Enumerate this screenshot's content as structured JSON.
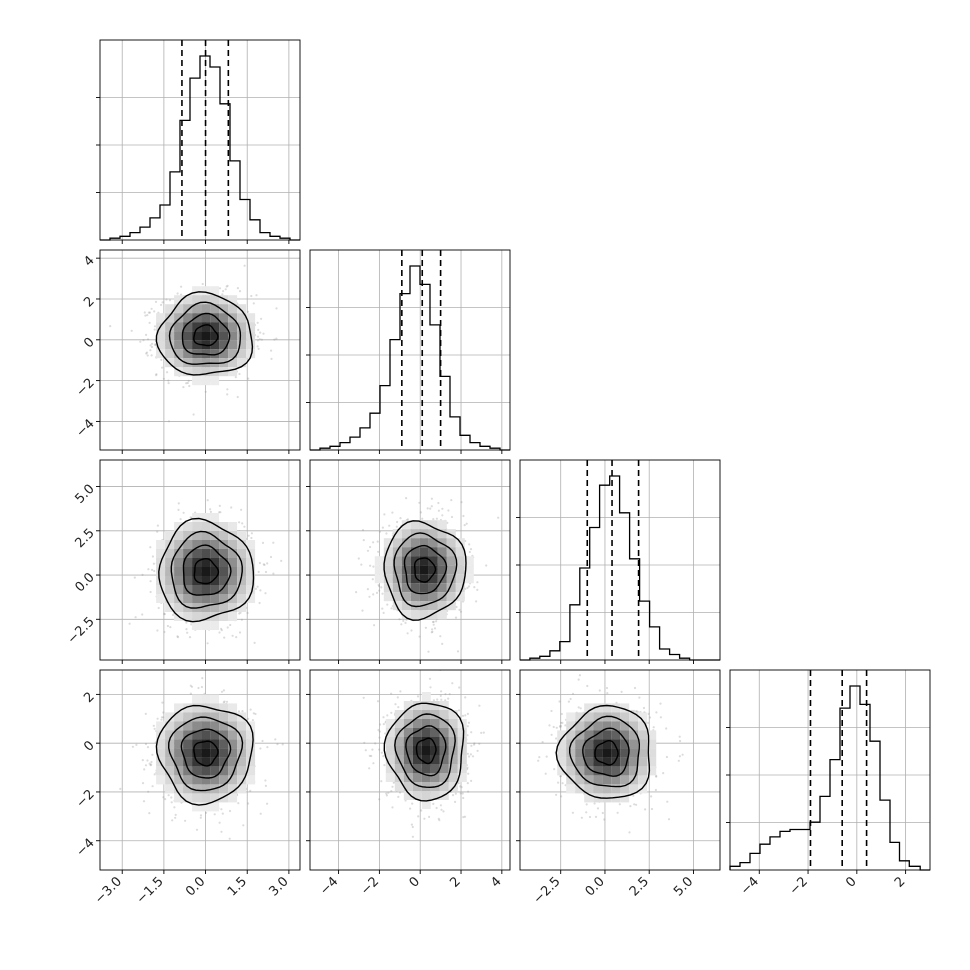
{
  "chart_data": {
    "type": "corner",
    "n_params": 4,
    "quantile_lines": "dashed",
    "grid": true,
    "axis_ranges": [
      [
        -3.8,
        3.4
      ],
      [
        -5.4,
        4.4
      ],
      [
        -4.8,
        6.5
      ],
      [
        -5.2,
        3.0
      ]
    ],
    "ticks": [
      [
        "−3.0",
        "−1.5",
        "0.0",
        "1.5",
        "3.0"
      ],
      [
        "−4",
        "−2",
        "0",
        "2",
        "4"
      ],
      [
        "−2.5",
        "0.0",
        "2.5",
        "5.0"
      ],
      [
        "−4",
        "−2",
        "0",
        "2"
      ]
    ],
    "tick_values": [
      [
        -3.0,
        -1.5,
        0.0,
        1.5,
        3.0
      ],
      [
        -4,
        -2,
        0,
        2,
        4
      ],
      [
        -2.5,
        0.0,
        2.5,
        5.0
      ],
      [
        -4,
        -2,
        0,
        2
      ]
    ],
    "histograms": [
      {
        "param": 1,
        "quantiles": [
          -0.85,
          0.0,
          0.82
        ],
        "bins": [
          -3.8,
          -3.44,
          -3.08,
          -2.72,
          -2.36,
          -2.0,
          -1.64,
          -1.28,
          -0.92,
          -0.56,
          -0.2,
          0.16,
          0.52,
          0.88,
          1.24,
          1.6,
          1.96,
          2.32,
          2.68,
          3.04,
          3.4
        ],
        "counts": [
          0.0,
          0.01,
          0.02,
          0.04,
          0.07,
          0.12,
          0.19,
          0.37,
          0.65,
          0.88,
          1.0,
          0.94,
          0.74,
          0.43,
          0.22,
          0.11,
          0.04,
          0.02,
          0.01,
          0.0
        ]
      },
      {
        "param": 2,
        "quantiles": [
          -0.9,
          0.1,
          1.0
        ],
        "bins": [
          -5.4,
          -4.91,
          -4.42,
          -3.93,
          -3.44,
          -2.95,
          -2.46,
          -1.97,
          -1.48,
          -0.99,
          -0.5,
          -0.01,
          0.48,
          0.97,
          1.46,
          1.95,
          2.44,
          2.93,
          3.42,
          3.91,
          4.4
        ],
        "counts": [
          0.0,
          0.01,
          0.02,
          0.04,
          0.07,
          0.12,
          0.2,
          0.35,
          0.6,
          0.85,
          1.0,
          0.9,
          0.68,
          0.4,
          0.18,
          0.08,
          0.04,
          0.02,
          0.01,
          0.0
        ]
      },
      {
        "param": 3,
        "quantiles": [
          -1.0,
          0.4,
          1.9
        ],
        "bins": [
          -4.8,
          -4.24,
          -3.68,
          -3.11,
          -2.55,
          -1.98,
          -1.42,
          -0.86,
          -0.3,
          0.27,
          0.83,
          1.39,
          1.96,
          2.52,
          3.09,
          3.65,
          4.22,
          4.78,
          5.35,
          5.91,
          6.47
        ],
        "counts": [
          0.0,
          0.01,
          0.02,
          0.05,
          0.1,
          0.3,
          0.5,
          0.72,
          0.95,
          1.0,
          0.8,
          0.55,
          0.32,
          0.18,
          0.06,
          0.03,
          0.01,
          0.0,
          0.0,
          0.0
        ]
      },
      {
        "param": 4,
        "quantiles": [
          -1.9,
          -0.6,
          0.4
        ],
        "bins": [
          -5.2,
          -4.79,
          -4.38,
          -3.97,
          -3.56,
          -3.15,
          -2.74,
          -2.33,
          -1.92,
          -1.51,
          -1.1,
          -0.69,
          -0.28,
          0.13,
          0.54,
          0.95,
          1.36,
          1.75,
          2.15,
          2.6,
          3.0
        ],
        "counts": [
          0.02,
          0.04,
          0.09,
          0.14,
          0.18,
          0.21,
          0.22,
          0.22,
          0.26,
          0.4,
          0.6,
          0.88,
          1.0,
          0.9,
          0.7,
          0.38,
          0.15,
          0.05,
          0.02,
          0.0
        ]
      }
    ],
    "density_panels": [
      {
        "x_param": 1,
        "y_param": 2,
        "center": [
          0.0,
          0.2
        ],
        "spread": [
          0.85,
          1.0
        ],
        "contours": [
          [
            0.15,
            0.2,
            0.28
          ],
          [
            0.25,
            0.25
          ],
          [
            0.15,
            0.15
          ]
        ]
      },
      {
        "x_param": 1,
        "y_param": 3,
        "center": [
          0.0,
          0.2
        ],
        "spread": [
          0.85,
          1.4
        ]
      },
      {
        "x_param": 2,
        "y_param": 3,
        "center": [
          0.2,
          0.3
        ],
        "spread": [
          1.0,
          1.35
        ]
      },
      {
        "x_param": 1,
        "y_param": 4,
        "center": [
          0.0,
          -0.4
        ],
        "spread": [
          0.85,
          1.0
        ]
      },
      {
        "x_param": 2,
        "y_param": 4,
        "center": [
          0.3,
          -0.3
        ],
        "spread": [
          0.95,
          1.0
        ]
      },
      {
        "x_param": 3,
        "y_param": 4,
        "center": [
          0.1,
          -0.4
        ],
        "spread": [
          1.3,
          0.95
        ]
      }
    ],
    "title": "",
    "xlabel": "",
    "ylabel": ""
  }
}
